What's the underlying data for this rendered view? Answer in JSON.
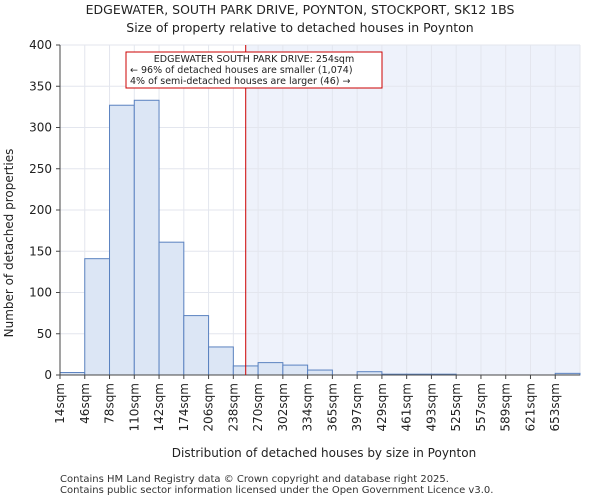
{
  "chart_data": {
    "type": "bar",
    "title": "EDGEWATER, SOUTH PARK DRIVE, POYNTON, STOCKPORT, SK12 1BS",
    "subtitle": "Size of property relative to detached houses in Poynton",
    "xlabel": "Distribution of detached houses by size in Poynton",
    "ylabel": "Number of detached properties",
    "ylim": [
      0,
      400
    ],
    "yticks": [
      0,
      50,
      100,
      150,
      200,
      250,
      300,
      350,
      400
    ],
    "categories": [
      "14sqm",
      "46sqm",
      "78sqm",
      "110sqm",
      "142sqm",
      "174sqm",
      "206sqm",
      "238sqm",
      "270sqm",
      "302sqm",
      "334sqm",
      "365sqm",
      "397sqm",
      "429sqm",
      "461sqm",
      "493sqm",
      "525sqm",
      "557sqm",
      "589sqm",
      "621sqm",
      "653sqm"
    ],
    "values": [
      3,
      141,
      327,
      333,
      161,
      72,
      34,
      11,
      15,
      12,
      6,
      0,
      4,
      1,
      1,
      1,
      0,
      0,
      0,
      0,
      2
    ],
    "marker": {
      "value_sqm": 254,
      "label": "EDGEWATER SOUTH PARK DRIVE: 254sqm",
      "color": "#cc0000"
    },
    "annotation": [
      "EDGEWATER SOUTH PARK DRIVE: 254sqm",
      "← 96% of detached houses are smaller (1,074)",
      "4% of semi-detached houses are larger (46) →"
    ],
    "colors": {
      "bar_fill": "#dce6f5",
      "bar_edge": "#5a82c0",
      "highlight_bg": "#eef2fb",
      "grid": "#e3e6ee"
    }
  },
  "footer": {
    "line1": "Contains HM Land Registry data © Crown copyright and database right 2025.",
    "line2": "Contains public sector information licensed under the Open Government Licence v3.0."
  }
}
